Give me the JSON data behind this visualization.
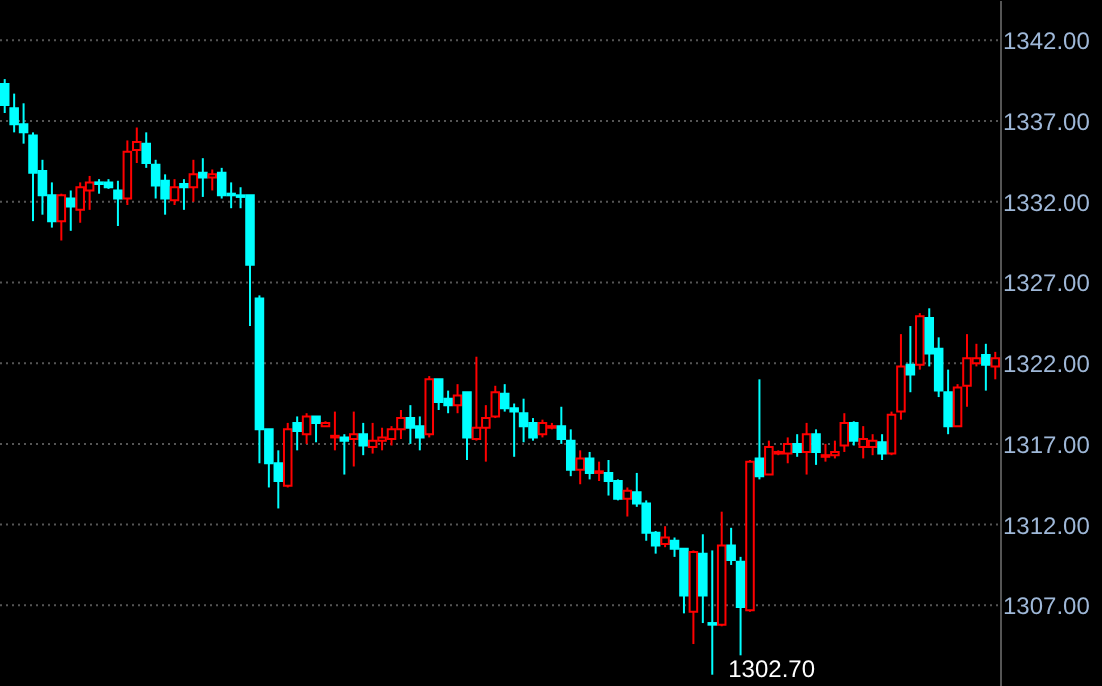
{
  "chart_data": {
    "type": "candlestick",
    "categories": [
      null,
      null,
      null,
      null,
      null,
      null,
      null,
      null,
      null,
      null,
      null,
      null,
      null,
      null,
      null,
      null,
      null,
      null,
      null,
      null,
      null,
      null,
      null,
      null,
      null,
      null,
      null,
      null,
      null,
      null,
      null,
      null,
      null,
      null,
      null,
      null,
      null,
      null,
      null,
      null,
      null,
      null,
      null,
      null,
      null,
      null,
      null,
      null,
      null,
      null,
      null,
      null,
      null,
      null,
      null,
      null,
      null,
      null,
      null,
      null,
      null,
      null,
      null,
      null,
      null,
      null,
      null,
      null,
      null,
      null,
      null,
      null,
      null,
      null,
      null,
      null,
      null,
      null,
      null,
      null,
      null,
      null,
      null,
      null,
      null,
      null,
      null,
      null,
      null,
      null,
      null,
      null,
      null,
      null,
      null,
      null,
      null,
      null,
      null,
      null,
      null,
      null,
      null,
      null,
      null,
      null
    ],
    "ohlc": [
      [
        1339.3,
        1339.6,
        1337.5,
        1338.0
      ],
      [
        1337.8,
        1338.7,
        1336.3,
        1336.8
      ],
      [
        1336.8,
        1338.1,
        1335.6,
        1336.3
      ],
      [
        1336.1,
        1336.3,
        1330.8,
        1333.8
      ],
      [
        1333.9,
        1334.6,
        1331.2,
        1332.4
      ],
      [
        1332.4,
        1333.2,
        1330.4,
        1330.8
      ],
      [
        1330.8,
        1332.5,
        1329.6,
        1332.4
      ],
      [
        1332.2,
        1332.7,
        1330.2,
        1331.7
      ],
      [
        1331.5,
        1333.2,
        1330.7,
        1332.9
      ],
      [
        1332.7,
        1333.6,
        1331.5,
        1333.2
      ],
      [
        1333.2,
        1333.4,
        1332.5,
        1333.1
      ],
      [
        1333.2,
        1333.4,
        1332.8,
        1332.9
      ],
      [
        1332.7,
        1333.3,
        1330.5,
        1332.2
      ],
      [
        1332.2,
        1335.8,
        1331.8,
        1335.1
      ],
      [
        1335.2,
        1336.6,
        1334.4,
        1335.7
      ],
      [
        1335.6,
        1336.3,
        1334.1,
        1334.4
      ],
      [
        1334.3,
        1334.6,
        1332.2,
        1333.0
      ],
      [
        1333.3,
        1333.7,
        1331.2,
        1332.2
      ],
      [
        1332.1,
        1333.4,
        1331.8,
        1332.9
      ],
      [
        1333.1,
        1333.4,
        1331.5,
        1332.9
      ],
      [
        1332.9,
        1334.6,
        1332.0,
        1333.7
      ],
      [
        1333.8,
        1334.7,
        1332.3,
        1333.5
      ],
      [
        1333.5,
        1334.0,
        1332.7,
        1333.7
      ],
      [
        1333.8,
        1334.1,
        1332.2,
        1332.4
      ],
      [
        1332.5,
        1333.2,
        1331.6,
        1332.4
      ],
      [
        1332.4,
        1332.9,
        1331.6,
        1332.3
      ],
      [
        1332.4,
        1332.4,
        1324.3,
        1328.1
      ],
      [
        1326.0,
        1326.2,
        1315.8,
        1317.9
      ],
      [
        1317.9,
        1317.9,
        1314.3,
        1315.8
      ],
      [
        1315.8,
        1316.6,
        1313.0,
        1314.7
      ],
      [
        1314.4,
        1318.3,
        1314.3,
        1317.9
      ],
      [
        1318.3,
        1318.7,
        1316.6,
        1317.8
      ],
      [
        1317.6,
        1318.9,
        1317.0,
        1318.7
      ],
      [
        1318.7,
        1318.7,
        1317.1,
        1318.3
      ],
      [
        1318.1,
        1318.4,
        1318.1,
        1318.3
      ],
      [
        1317.4,
        1319.0,
        1316.6,
        1317.5
      ],
      [
        1317.4,
        1317.6,
        1315.1,
        1317.2
      ],
      [
        1317.3,
        1319.0,
        1315.6,
        1317.6
      ],
      [
        1317.6,
        1318.3,
        1316.3,
        1316.9
      ],
      [
        1316.8,
        1318.3,
        1316.4,
        1317.2
      ],
      [
        1317.2,
        1318.0,
        1316.6,
        1317.4
      ],
      [
        1317.3,
        1318.1,
        1316.9,
        1317.9
      ],
      [
        1317.9,
        1319.1,
        1317.3,
        1318.6
      ],
      [
        1318.6,
        1319.4,
        1317.0,
        1318.0
      ],
      [
        1318.1,
        1318.7,
        1316.6,
        1317.4
      ],
      [
        1317.6,
        1321.2,
        1317.4,
        1321.0
      ],
      [
        1321.0,
        1321.0,
        1319.1,
        1319.6
      ],
      [
        1319.8,
        1320.3,
        1318.9,
        1319.4
      ],
      [
        1319.4,
        1320.7,
        1318.9,
        1320.0
      ],
      [
        1320.2,
        1320.2,
        1316.0,
        1317.4
      ],
      [
        1317.3,
        1322.4,
        1317.2,
        1318.0
      ],
      [
        1318.0,
        1319.4,
        1315.9,
        1318.6
      ],
      [
        1318.7,
        1320.6,
        1318.6,
        1320.2
      ],
      [
        1320.1,
        1320.7,
        1319.0,
        1319.2
      ],
      [
        1319.2,
        1319.5,
        1316.2,
        1319.0
      ],
      [
        1318.9,
        1319.8,
        1317.1,
        1318.1
      ],
      [
        1318.3,
        1318.6,
        1317.2,
        1317.4
      ],
      [
        1317.6,
        1318.5,
        1317.4,
        1318.3
      ],
      [
        1318.0,
        1318.3,
        1317.9,
        1318.1
      ],
      [
        1318.1,
        1319.3,
        1317.0,
        1317.3
      ],
      [
        1317.2,
        1317.9,
        1315.0,
        1315.4
      ],
      [
        1315.4,
        1316.6,
        1314.5,
        1316.1
      ],
      [
        1316.1,
        1316.5,
        1314.8,
        1315.2
      ],
      [
        1315.2,
        1315.9,
        1314.7,
        1315.3
      ],
      [
        1315.2,
        1316.0,
        1313.8,
        1314.7
      ],
      [
        1314.7,
        1314.8,
        1313.5,
        1313.6
      ],
      [
        1313.6,
        1314.3,
        1312.5,
        1314.1
      ],
      [
        1314.0,
        1315.2,
        1313.1,
        1313.3
      ],
      [
        1313.3,
        1313.5,
        1311.0,
        1311.5
      ],
      [
        1311.5,
        1311.6,
        1310.2,
        1310.7
      ],
      [
        1310.8,
        1311.9,
        1310.6,
        1311.2
      ],
      [
        1311.0,
        1311.2,
        1310.0,
        1310.5
      ],
      [
        1310.5,
        1310.5,
        1306.5,
        1307.6
      ],
      [
        1306.6,
        1310.4,
        1304.6,
        1310.3
      ],
      [
        1310.2,
        1311.4,
        1305.9,
        1307.6
      ],
      [
        1305.9,
        1310.4,
        1302.7,
        1305.8
      ],
      [
        1305.8,
        1312.8,
        1305.7,
        1310.7
      ],
      [
        1310.7,
        1311.8,
        1309.5,
        1309.8
      ],
      [
        1309.7,
        1310.0,
        1303.9,
        1306.9
      ],
      [
        1306.7,
        1316.0,
        1306.6,
        1315.9
      ],
      [
        1316.1,
        1321.0,
        1314.8,
        1315.0
      ],
      [
        1315.1,
        1317.2,
        1315.1,
        1316.8
      ],
      [
        1316.4,
        1316.6,
        1316.3,
        1316.5
      ],
      [
        1316.4,
        1317.4,
        1315.8,
        1317.0
      ],
      [
        1317.0,
        1317.6,
        1316.2,
        1316.5
      ],
      [
        1316.5,
        1318.3,
        1315.1,
        1317.6
      ],
      [
        1317.6,
        1317.9,
        1315.7,
        1316.5
      ],
      [
        1316.2,
        1317.0,
        1315.9,
        1316.3
      ],
      [
        1316.3,
        1317.2,
        1316.1,
        1316.5
      ],
      [
        1316.9,
        1318.9,
        1316.5,
        1318.3
      ],
      [
        1318.3,
        1318.4,
        1316.9,
        1317.2
      ],
      [
        1316.8,
        1318.1,
        1316.1,
        1317.3
      ],
      [
        1316.8,
        1317.6,
        1316.3,
        1317.2
      ],
      [
        1317.1,
        1317.6,
        1316.0,
        1316.4
      ],
      [
        1316.4,
        1319.0,
        1316.3,
        1318.8
      ],
      [
        1319.0,
        1323.8,
        1318.5,
        1321.8
      ],
      [
        1321.9,
        1324.3,
        1320.2,
        1321.3
      ],
      [
        1321.9,
        1325.1,
        1321.6,
        1324.9
      ],
      [
        1324.8,
        1325.4,
        1321.8,
        1322.6
      ],
      [
        1322.9,
        1323.6,
        1319.9,
        1320.3
      ],
      [
        1320.2,
        1321.6,
        1317.6,
        1318.1
      ],
      [
        1318.1,
        1320.7,
        1318.1,
        1320.5
      ],
      [
        1320.6,
        1323.8,
        1319.3,
        1322.3
      ],
      [
        1322.0,
        1323.2,
        1321.8,
        1322.3
      ],
      [
        1322.5,
        1323.2,
        1320.3,
        1321.9
      ],
      [
        1321.8,
        1322.7,
        1321.0,
        1322.3
      ]
    ],
    "colors": [
      "#00ffff",
      "#00ffff",
      "#00ffff",
      "#00ffff",
      "#00ffff",
      "#00ffff",
      "#ff0000",
      "#00ffff",
      "#ff0000",
      "#ff0000",
      "#00ffff",
      "#00ffff",
      "#00ffff",
      "#ff0000",
      "#ff0000",
      "#00ffff",
      "#00ffff",
      "#00ffff",
      "#ff0000",
      "#00ffff",
      "#ff0000",
      "#00ffff",
      "#ff0000",
      "#00ffff",
      "#00ffff",
      "#00ffff",
      "#00ffff",
      "#00ffff",
      "#00ffff",
      "#00ffff",
      "#ff0000",
      "#00ffff",
      "#ff0000",
      "#00ffff",
      "#ff0000",
      "#ff0000",
      "#00ffff",
      "#ff0000",
      "#00ffff",
      "#ff0000",
      "#ff0000",
      "#ff0000",
      "#ff0000",
      "#00ffff",
      "#00ffff",
      "#ff0000",
      "#00ffff",
      "#00ffff",
      "#ff0000",
      "#00ffff",
      "#ff0000",
      "#ff0000",
      "#ff0000",
      "#00ffff",
      "#00ffff",
      "#00ffff",
      "#00ffff",
      "#ff0000",
      "#ff0000",
      "#00ffff",
      "#00ffff",
      "#ff0000",
      "#00ffff",
      "#ff0000",
      "#00ffff",
      "#00ffff",
      "#ff0000",
      "#00ffff",
      "#00ffff",
      "#00ffff",
      "#ff0000",
      "#00ffff",
      "#00ffff",
      "#ff0000",
      "#00ffff",
      "#00ffff",
      "#ff0000",
      "#00ffff",
      "#00ffff",
      "#ff0000",
      "#00ffff",
      "#ff0000",
      "#ff0000",
      "#ff0000",
      "#00ffff",
      "#ff0000",
      "#00ffff",
      "#ff0000",
      "#ff0000",
      "#ff0000",
      "#00ffff",
      "#ff0000",
      "#ff0000",
      "#00ffff",
      "#ff0000",
      "#ff0000",
      "#00ffff",
      "#ff0000",
      "#00ffff",
      "#00ffff",
      "#00ffff",
      "#ff0000",
      "#ff0000",
      "#ff0000",
      "#00ffff",
      "#ff0000"
    ],
    "ylim": [
      1302,
      1344.5
    ],
    "yticks": [
      {
        "value": 1307,
        "label": "1307.00"
      },
      {
        "value": 1312,
        "label": "1312.00"
      },
      {
        "value": 1317,
        "label": "1317.00"
      },
      {
        "value": 1322,
        "label": "1322.00"
      },
      {
        "value": 1327,
        "label": "1327.00"
      },
      {
        "value": 1332,
        "label": "1332.00"
      },
      {
        "value": 1337,
        "label": "1337.00"
      },
      {
        "value": 1342,
        "label": "1342.00"
      }
    ],
    "grid": "y",
    "annotations": [
      "1302.70"
    ]
  }
}
